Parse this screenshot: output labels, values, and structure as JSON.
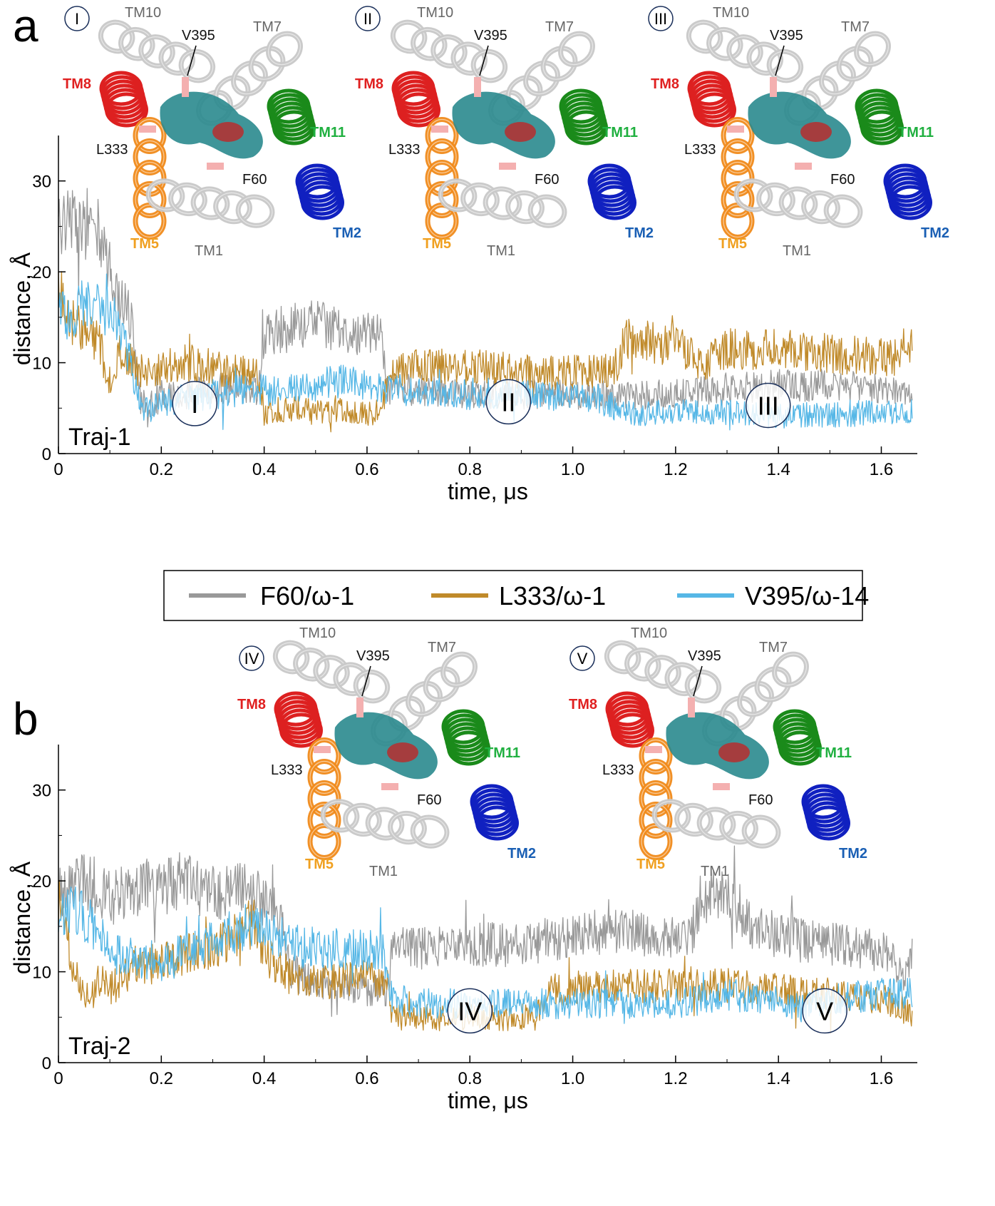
{
  "panel_labels": [
    "a",
    "b"
  ],
  "legend": {
    "entries": [
      {
        "label": "F60/ω-1",
        "color": "#999999"
      },
      {
        "label": "L333/ω-1",
        "color": "#c08a2a"
      },
      {
        "label": "V395/ω-14",
        "color": "#56b7e6"
      }
    ]
  },
  "structure_insets": {
    "helix_colors": {
      "TM8": "#dd2020",
      "TM5": "#f08a1a",
      "TM11": "#1a8a1a",
      "TM2": "#1020c0",
      "gray": "#c8c8c8",
      "pocket": "#2a8a8e"
    },
    "label_colors": {
      "TM8": "#e02020",
      "TM5": "#f0a020",
      "TM11": "#20b040",
      "TM2": "#1a5fb4",
      "gray": "#666666",
      "residue": "#111111"
    },
    "panels": [
      {
        "roman": "I",
        "labels": {
          "TM10": "TM10",
          "TM7": "TM7",
          "TM8": "TM8",
          "TM11": "TM11",
          "TM5": "TM5",
          "TM1": "TM1",
          "TM2": "TM2",
          "V395": "V395",
          "L333": "L333",
          "F60": "F60"
        }
      },
      {
        "roman": "II",
        "labels": {
          "TM10": "TM10",
          "TM7": "TM7",
          "TM8": "TM8",
          "TM11": "TM11",
          "TM5": "TM5",
          "TM1": "TM1",
          "TM2": "TM2",
          "V395": "V395",
          "L333": "L333",
          "F60": "F60"
        }
      },
      {
        "roman": "III",
        "labels": {
          "TM10": "TM10",
          "TM7": "TM7",
          "TM8": "TM8",
          "TM11": "TM11",
          "TM5": "TM5",
          "TM1": "TM1",
          "TM2": "TM2",
          "V395": "V395",
          "L333": "L333",
          "F60": "F60"
        }
      },
      {
        "roman": "IV",
        "labels": {
          "TM10": "TM10",
          "TM7": "TM7",
          "TM8": "TM8",
          "TM11": "TM11",
          "TM5": "TM5",
          "TM1": "TM1",
          "TM2": "TM2",
          "V395": "V395",
          "L333": "L333",
          "F60": "F60"
        }
      },
      {
        "roman": "V",
        "labels": {
          "TM10": "TM10",
          "TM7": "TM7",
          "TM8": "TM8",
          "TM11": "TM11",
          "TM5": "TM5",
          "TM1": "TM1",
          "TM2": "TM2",
          "V395": "V395",
          "L333": "L333",
          "F60": "F60"
        }
      }
    ]
  },
  "chart_data": [
    {
      "type": "line",
      "panel": "a",
      "trajectory_label": "Traj-1",
      "xlabel": "time, μs",
      "ylabel": "distance, Å",
      "xlim": [
        0,
        1.67
      ],
      "ylim": [
        0,
        35
      ],
      "xticks": [
        "0",
        "0.2",
        "0.4",
        "0.6",
        "0.8",
        "1.0",
        "1.2",
        "1.4",
        "1.6"
      ],
      "yticks": [
        "0",
        "10",
        "20",
        "30"
      ],
      "state_markers": [
        {
          "label": "I",
          "x": 0.265,
          "y": 5.5
        },
        {
          "label": "II",
          "x": 0.875,
          "y": 5.7
        },
        {
          "label": "III",
          "x": 1.38,
          "y": 5.3
        }
      ],
      "series": [
        {
          "name": "F60/ω-1",
          "color": "#999999",
          "x": [
            0,
            0.02,
            0.04,
            0.06,
            0.08,
            0.1,
            0.12,
            0.14,
            0.16,
            0.18,
            0.2,
            0.25,
            0.3,
            0.35,
            0.39,
            0.4,
            0.45,
            0.5,
            0.55,
            0.6,
            0.63,
            0.64,
            0.7,
            0.8,
            0.9,
            1.0,
            1.08,
            1.1,
            1.2,
            1.3,
            1.4,
            1.5,
            1.6,
            1.66
          ],
          "y": [
            25,
            27,
            24,
            26,
            24,
            20,
            17,
            15,
            6,
            5.5,
            6,
            6.5,
            7,
            7.5,
            7,
            13,
            14,
            14.5,
            13.5,
            13,
            13,
            7,
            7,
            6.5,
            6.5,
            6.5,
            6.5,
            6.5,
            6.5,
            7,
            7.5,
            7.5,
            7,
            6.5
          ]
        },
        {
          "name": "L333/ω-1",
          "color": "#c08a2a",
          "x": [
            0,
            0.02,
            0.04,
            0.06,
            0.08,
            0.1,
            0.12,
            0.14,
            0.16,
            0.18,
            0.2,
            0.25,
            0.3,
            0.35,
            0.39,
            0.4,
            0.45,
            0.5,
            0.55,
            0.6,
            0.63,
            0.64,
            0.7,
            0.8,
            0.9,
            1.0,
            1.08,
            1.1,
            1.2,
            1.25,
            1.3,
            1.4,
            1.5,
            1.6,
            1.66
          ],
          "y": [
            19,
            15,
            14,
            13,
            12,
            8,
            11,
            10,
            9,
            9,
            9.5,
            10,
            9.5,
            9,
            8.5,
            4.5,
            5,
            4.5,
            5,
            4.5,
            4.5,
            9,
            9.5,
            9.5,
            9,
            9,
            9,
            12.5,
            12,
            10,
            11.5,
            11.5,
            11,
            10.5,
            12
          ]
        },
        {
          "name": "V395/ω-14",
          "color": "#56b7e6",
          "x": [
            0,
            0.02,
            0.04,
            0.06,
            0.08,
            0.1,
            0.12,
            0.14,
            0.16,
            0.18,
            0.2,
            0.25,
            0.3,
            0.35,
            0.4,
            0.45,
            0.5,
            0.55,
            0.6,
            0.65,
            0.7,
            0.8,
            0.9,
            1.0,
            1.05,
            1.1,
            1.2,
            1.3,
            1.4,
            1.5,
            1.6,
            1.66
          ],
          "y": [
            16,
            15,
            16,
            17,
            16,
            15,
            14,
            10,
            5,
            5,
            5.5,
            6,
            6.5,
            7,
            7,
            7,
            7.5,
            8,
            7.5,
            7,
            7,
            6.5,
            6.5,
            6.5,
            6,
            4.5,
            4.5,
            4.5,
            4.2,
            4.3,
            4.5,
            4.5
          ]
        }
      ]
    },
    {
      "type": "line",
      "panel": "b",
      "trajectory_label": "Traj-2",
      "xlabel": "time, μs",
      "ylabel": "distance, Å",
      "xlim": [
        0,
        1.67
      ],
      "ylim": [
        0,
        35
      ],
      "xticks": [
        "0",
        "0.2",
        "0.4",
        "0.6",
        "0.8",
        "1.0",
        "1.2",
        "1.4",
        "1.6"
      ],
      "yticks": [
        "0",
        "10",
        "20",
        "30"
      ],
      "state_markers": [
        {
          "label": "IV",
          "x": 0.8,
          "y": 5.7
        },
        {
          "label": "V",
          "x": 1.49,
          "y": 5.7
        }
      ],
      "series": [
        {
          "name": "F60/ω-1",
          "color": "#999999",
          "x": [
            0,
            0.02,
            0.05,
            0.1,
            0.15,
            0.2,
            0.25,
            0.3,
            0.35,
            0.4,
            0.43,
            0.45,
            0.5,
            0.55,
            0.6,
            0.64,
            0.65,
            0.7,
            0.8,
            0.9,
            0.95,
            1.0,
            1.1,
            1.2,
            1.23,
            1.25,
            1.3,
            1.35,
            1.4,
            1.5,
            1.6,
            1.65,
            1.66
          ],
          "y": [
            18,
            21,
            20,
            18,
            19,
            19.5,
            20,
            18.5,
            19,
            18,
            16,
            10,
            9,
            8.5,
            8,
            8,
            13,
            12.5,
            13,
            13,
            13.5,
            14,
            14.5,
            14,
            14,
            18,
            18.5,
            15,
            14,
            13,
            12.5,
            9,
            13
          ]
        },
        {
          "name": "L333/ω-1",
          "color": "#c08a2a",
          "x": [
            0,
            0.02,
            0.04,
            0.06,
            0.08,
            0.1,
            0.15,
            0.2,
            0.25,
            0.3,
            0.35,
            0.38,
            0.4,
            0.45,
            0.5,
            0.55,
            0.6,
            0.64,
            0.65,
            0.7,
            0.8,
            0.9,
            0.93,
            0.95,
            1.0,
            1.1,
            1.2,
            1.3,
            1.4,
            1.5,
            1.6,
            1.66
          ],
          "y": [
            18,
            13,
            9,
            7,
            9,
            8,
            10.5,
            11,
            12,
            12.5,
            14,
            16,
            12,
            9.5,
            9,
            9,
            9.5,
            9,
            5,
            5,
            5,
            5,
            5,
            8,
            8,
            8.5,
            8.5,
            8.5,
            8,
            7.5,
            7,
            5.5
          ]
        },
        {
          "name": "V395/ω-14",
          "color": "#56b7e6",
          "x": [
            0,
            0.02,
            0.05,
            0.08,
            0.1,
            0.15,
            0.2,
            0.25,
            0.3,
            0.35,
            0.4,
            0.45,
            0.5,
            0.55,
            0.6,
            0.63,
            0.65,
            0.7,
            0.8,
            0.9,
            1.0,
            1.1,
            1.2,
            1.3,
            1.4,
            1.45,
            1.5,
            1.6,
            1.66
          ],
          "y": [
            17,
            17,
            16,
            14,
            12,
            11.5,
            11,
            12,
            13,
            15,
            15,
            13,
            12.5,
            12.5,
            12.5,
            12,
            7,
            6.5,
            6.5,
            6.5,
            6.5,
            6.5,
            6.5,
            7.5,
            7,
            6,
            7,
            7.5,
            7.5
          ]
        }
      ]
    }
  ]
}
